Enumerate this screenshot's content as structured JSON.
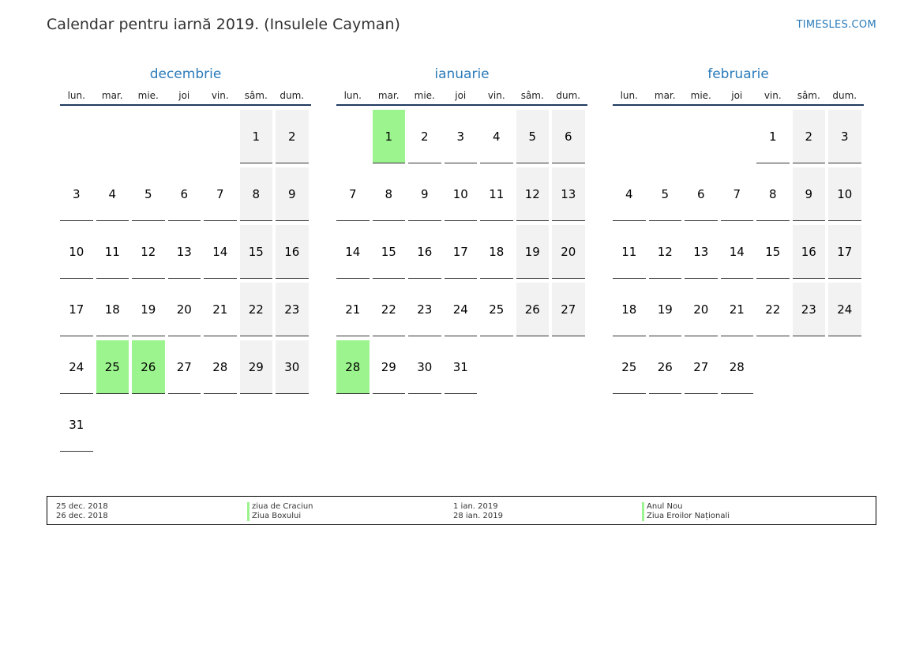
{
  "header": {
    "title": "Calendar pentru iarnă 2019. (Insulele Cayman)",
    "brand": "TIMESLES.COM"
  },
  "weekdays": [
    "lun.",
    "mar.",
    "mie.",
    "joi",
    "vin.",
    "sâm.",
    "dum."
  ],
  "colors": {
    "accent": "#2b7bb9",
    "holiday": "#9cf48e",
    "weekend": "#f2f2f2",
    "rule": "#1f3a5f"
  },
  "months": [
    {
      "name": "decembrie",
      "start_offset": 5,
      "days": 31,
      "holidays": [
        25,
        26
      ]
    },
    {
      "name": "ianuarie",
      "start_offset": 1,
      "days": 31,
      "holidays": [
        1,
        28
      ]
    },
    {
      "name": "februarie",
      "start_offset": 4,
      "days": 28,
      "holidays": []
    }
  ],
  "legend": {
    "left": [
      {
        "date": "25 dec. 2018",
        "name": "ziua de Craciun"
      },
      {
        "date": "26 dec. 2018",
        "name": "Ziua Boxului"
      }
    ],
    "right": [
      {
        "date": "1 ian. 2019",
        "name": "Anul Nou"
      },
      {
        "date": "28 ian. 2019",
        "name": "Ziua Eroilor Naționali"
      }
    ]
  }
}
